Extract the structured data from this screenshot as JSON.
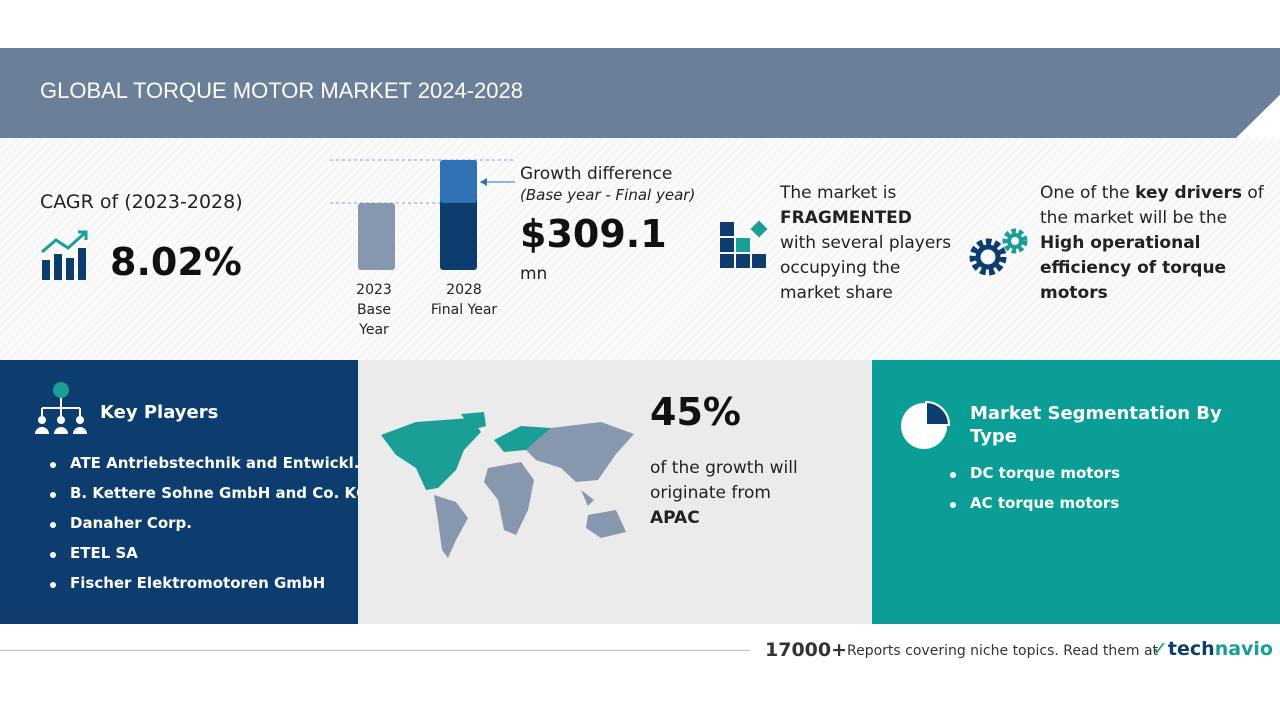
{
  "header": {
    "title": "GLOBAL TORQUE MOTOR MARKET 2024-2028"
  },
  "cagr": {
    "label": "CAGR of (2023-2028)",
    "value": "8.02%"
  },
  "growth": {
    "title": "Growth difference",
    "subtitle": "(Base year - Final year)",
    "value": "$309.1",
    "unit": "mn",
    "bars": [
      {
        "year": "2023",
        "label": "Base Year"
      },
      {
        "year": "2028",
        "label": "Final Year"
      }
    ]
  },
  "market": {
    "lead": "The market is",
    "emphasis": "FRAGMENTED",
    "rest": "with several players occupying the market share"
  },
  "drivers": {
    "lead": "One of the",
    "emphasis": "key drivers",
    "middle": "of the market will be the",
    "driver": "High operational efficiency of torque motors"
  },
  "key_players": {
    "title": "Key Players",
    "items": [
      "ATE Antriebstechnik and Entwickl...",
      "B. Kettere Sohne GmbH and Co. KG",
      "Danaher Corp.",
      "ETEL SA",
      "Fischer Elektromotoren GmbH"
    ]
  },
  "region": {
    "share": "45%",
    "text": "of the growth will originate from",
    "name": "APAC"
  },
  "segmentation": {
    "title": "Market Segmentation By Type",
    "items": [
      "DC torque motors",
      "AC torque motors"
    ]
  },
  "footer": {
    "count": "17000+",
    "text": "Reports covering niche topics. Read them at",
    "brand_a": "tech",
    "brand_b": "navio"
  }
}
